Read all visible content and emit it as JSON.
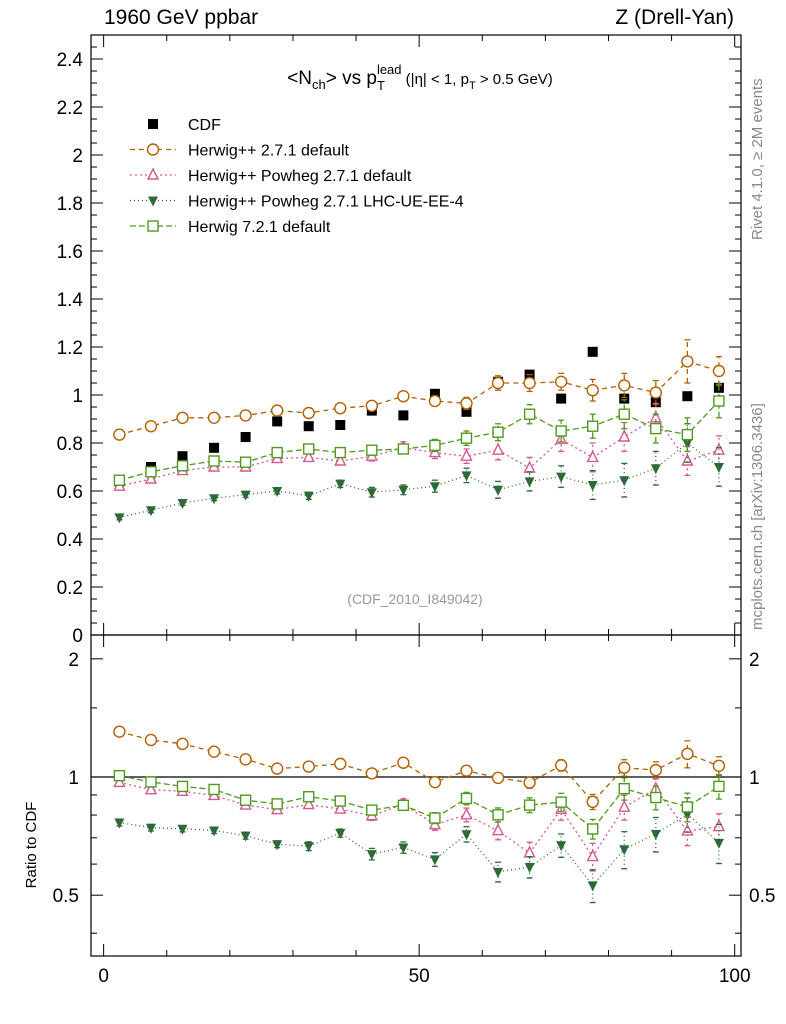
{
  "header": {
    "left": "1960 GeV ppbar",
    "right": "Z (Drell-Yan)"
  },
  "side_labels": {
    "rivet": "Rivet 4.1.0, ≥ 2M events",
    "mcplots": "mcplots.cern.ch [arXiv:1306.3436]"
  },
  "chart_data": {
    "type": "scatter",
    "title": "<N_ch> vs p_T^lead (|η| < 1, p_T > 0.5 GeV)",
    "title_parts": {
      "a": "<N",
      "a_sub": "ch",
      "b": "> vs p",
      "b_sub": "T",
      "b_sup": "lead",
      "c": " (|η| < 1, p",
      "c_sub": "T",
      "d": " > 0.5 GeV)"
    },
    "analysis_label": "(CDF_2010_I849042)",
    "xlabel": "",
    "ylabel": "",
    "ratio_ylabel": "Ratio to CDF",
    "xlim": [
      -2,
      101
    ],
    "ylim": [
      0,
      2.5
    ],
    "ratio_ylim": [
      0.35,
      2.3
    ],
    "x_ticks": [
      "0",
      "50",
      "100"
    ],
    "y_ticks": [
      "0",
      "0.2",
      "0.4",
      "0.6",
      "0.8",
      "1",
      "1.2",
      "1.4",
      "1.6",
      "1.8",
      "2",
      "2.2",
      "2.4"
    ],
    "ratio_ticks": [
      "0.5",
      "1",
      "2"
    ],
    "x": [
      2.5,
      7.5,
      12.5,
      17.5,
      22.5,
      27.5,
      32.5,
      37.5,
      42.5,
      47.5,
      52.5,
      57.5,
      62.5,
      67.5,
      72.5,
      77.5,
      82.5,
      87.5,
      92.5,
      97.5
    ],
    "series": [
      {
        "name": "CDF",
        "color": "#000000",
        "marker": "square",
        "values": [
          0.64,
          0.7,
          0.745,
          0.78,
          0.825,
          0.89,
          0.87,
          0.875,
          0.935,
          0.915,
          1.005,
          0.93,
          1.055,
          1.085,
          0.985,
          1.18,
          0.985,
          0.97,
          0.995,
          1.03
        ]
      },
      {
        "name": "Herwig++ 2.7.1 default",
        "color": "#b35f00",
        "marker": "circle",
        "dash": "5,4",
        "values": [
          0.835,
          0.87,
          0.905,
          0.905,
          0.915,
          0.935,
          0.925,
          0.945,
          0.955,
          0.995,
          0.975,
          0.965,
          1.05,
          1.05,
          1.055,
          1.02,
          1.04,
          1.01,
          1.14,
          1.1
        ],
        "errors": [
          0.01,
          0.01,
          0.01,
          0.01,
          0.01,
          0.015,
          0.015,
          0.015,
          0.015,
          0.02,
          0.02,
          0.025,
          0.03,
          0.035,
          0.035,
          0.045,
          0.05,
          0.05,
          0.09,
          0.06
        ]
      },
      {
        "name": "Herwig++ Powheg 2.7.1 default",
        "color": "#d6578f",
        "marker": "triangle-up",
        "dash": "2,3",
        "values": [
          0.62,
          0.65,
          0.685,
          0.7,
          0.7,
          0.735,
          0.74,
          0.725,
          0.745,
          0.78,
          0.76,
          0.745,
          0.77,
          0.695,
          0.815,
          0.74,
          0.825,
          0.905,
          0.725,
          0.77
        ],
        "errors": [
          0.01,
          0.01,
          0.01,
          0.01,
          0.012,
          0.012,
          0.015,
          0.015,
          0.02,
          0.025,
          0.025,
          0.03,
          0.04,
          0.045,
          0.05,
          0.06,
          0.06,
          0.06,
          0.06,
          0.06
        ]
      },
      {
        "name": "Herwig++ Powheg 2.7.1 LHC-UE-EE-4",
        "color": "#2d6a36",
        "marker": "triangle-down",
        "dash": "1,3",
        "values": [
          0.49,
          0.52,
          0.55,
          0.57,
          0.585,
          0.6,
          0.58,
          0.63,
          0.595,
          0.605,
          0.62,
          0.665,
          0.605,
          0.64,
          0.66,
          0.625,
          0.645,
          0.695,
          0.8,
          0.7
        ],
        "errors": [
          0.01,
          0.01,
          0.01,
          0.01,
          0.012,
          0.012,
          0.015,
          0.015,
          0.02,
          0.02,
          0.025,
          0.03,
          0.035,
          0.04,
          0.045,
          0.06,
          0.07,
          0.07,
          0.08,
          0.08
        ]
      },
      {
        "name": "Herwig 7.2.1 default",
        "color": "#4f9a1e",
        "marker": "open-square",
        "dash": "6,3",
        "values": [
          0.645,
          0.68,
          0.705,
          0.725,
          0.72,
          0.76,
          0.775,
          0.76,
          0.77,
          0.775,
          0.79,
          0.82,
          0.845,
          0.92,
          0.85,
          0.87,
          0.92,
          0.86,
          0.835,
          0.975
        ],
        "errors": [
          0.01,
          0.01,
          0.01,
          0.01,
          0.012,
          0.012,
          0.015,
          0.015,
          0.02,
          0.02,
          0.025,
          0.03,
          0.035,
          0.04,
          0.045,
          0.05,
          0.06,
          0.06,
          0.07,
          0.07
        ]
      }
    ],
    "legend_position": "top-left"
  }
}
